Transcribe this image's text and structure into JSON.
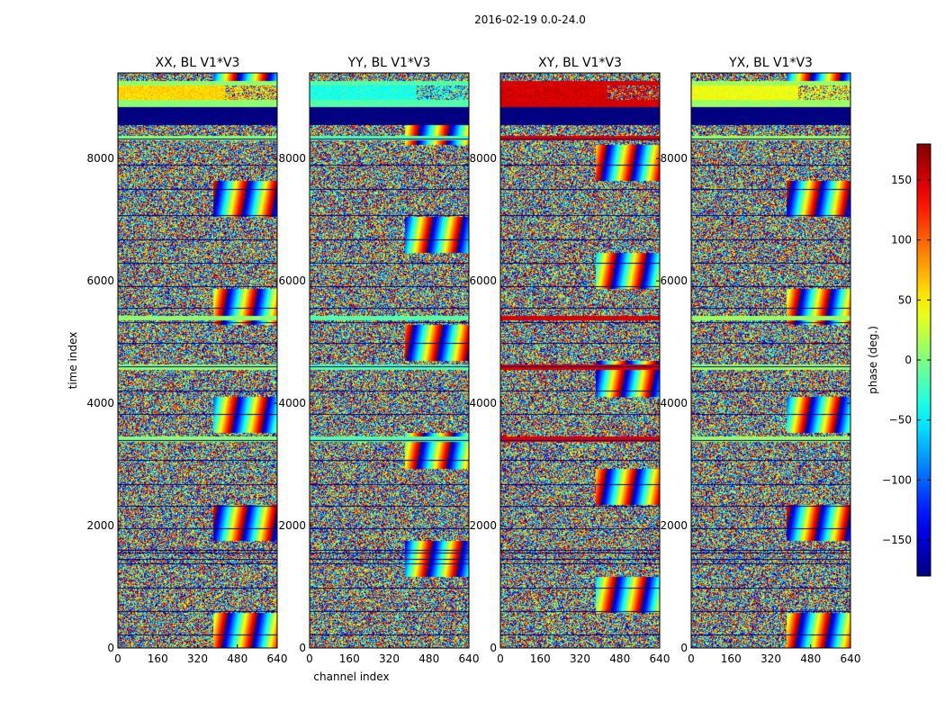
{
  "figure": {
    "suptitle": "2016-02-19 0.0-24.0"
  },
  "chart_data": {
    "type": "heatmap",
    "xlabel": "channel index",
    "ylabel": "time index",
    "xlim": [
      0,
      640
    ],
    "ylim": [
      0,
      9400
    ],
    "xticks": [
      0,
      160,
      320,
      480,
      640
    ],
    "yticks": [
      0,
      2000,
      4000,
      6000,
      8000
    ],
    "colorbar": {
      "label": "phase (deg.)",
      "range": [
        -180,
        180
      ],
      "ticks": [
        -150,
        -100,
        -50,
        0,
        50,
        100,
        150
      ],
      "tick_labels": [
        "−150",
        "−100",
        "−50",
        "0",
        "50",
        "100",
        "150"
      ],
      "colormap": "jet"
    },
    "panels": [
      {
        "title": "XX, BL V1*V3",
        "polarization": "XX",
        "top_band_phase": 60,
        "band2_phase": 5
      },
      {
        "title": "YY, BL V1*V3",
        "polarization": "YY",
        "top_band_phase": -35,
        "band2_phase": -15
      },
      {
        "title": "XY, BL V1*V3",
        "polarization": "XY",
        "top_band_phase": 150,
        "band2_phase": 150
      },
      {
        "title": "YX, BL V1*V3",
        "polarization": "YX",
        "top_band_phase": 40,
        "band2_phase": 10
      }
    ],
    "flagged_time_ranges": [
      [
        8550,
        8850
      ]
    ],
    "flag_lines_time": [
      220,
      600,
      980,
      1380,
      1450,
      1560,
      1610,
      1960,
      2330,
      2680,
      3080,
      3400,
      3820,
      4200,
      4600,
      4980,
      5330,
      5560,
      5920,
      6290,
      6680,
      7080,
      7500,
      7900,
      8330
    ],
    "smooth_time_ranges": [
      [
        3380,
        3460
      ],
      [
        4560,
        4640
      ],
      [
        5360,
        5440
      ],
      [
        8300,
        8380
      ],
      [
        8850,
        8960
      ],
      [
        9200,
        9280
      ]
    ],
    "shared_x_label_panel": 1
  }
}
